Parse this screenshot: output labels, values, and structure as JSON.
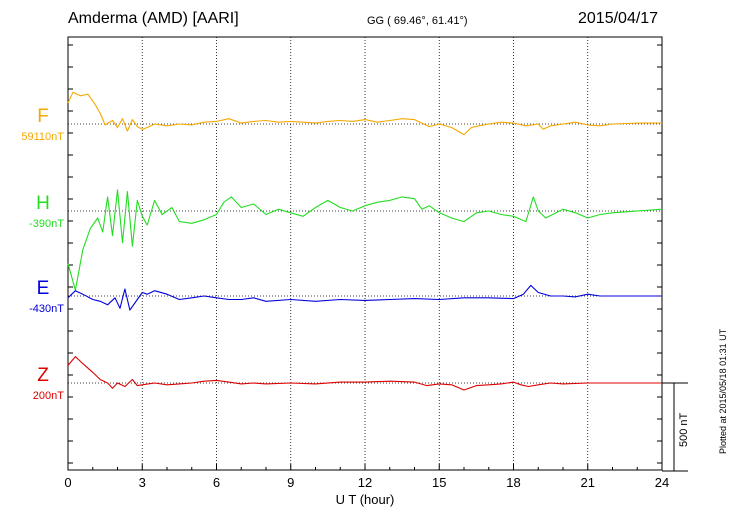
{
  "header": {
    "title": "Amderma (AMD)  [AARI]",
    "coords": "GG ( 69.46°,  61.41°)",
    "date": "2015/04/17",
    "plotted": "Plotted at 2015/05/18 01:31 UT"
  },
  "scale_bar": {
    "label": "500 nT",
    "value_nT": 500
  },
  "chart_data": {
    "type": "line",
    "title": "Amderma (AMD)  [AARI]",
    "xlabel": "U T (hour)",
    "ylabel": "",
    "xlim": [
      0,
      24
    ],
    "xticks": [
      0,
      3,
      6,
      9,
      12,
      15,
      18,
      21,
      24
    ],
    "grid": true,
    "scale_nT": 500,
    "series": [
      {
        "name": "F",
        "baseline_label": "59110nT",
        "baseline_nT": 59110,
        "color": "#f5a800",
        "points": [
          [
            0,
            120
          ],
          [
            0.2,
            180
          ],
          [
            0.5,
            160
          ],
          [
            0.8,
            170
          ],
          [
            1.1,
            110
          ],
          [
            1.3,
            60
          ],
          [
            1.5,
            -5
          ],
          [
            1.8,
            20
          ],
          [
            2.0,
            -20
          ],
          [
            2.2,
            30
          ],
          [
            2.4,
            -40
          ],
          [
            2.6,
            25
          ],
          [
            2.8,
            -15
          ],
          [
            3.0,
            -30
          ],
          [
            3.2,
            -20
          ],
          [
            3.5,
            0
          ],
          [
            4.0,
            -10
          ],
          [
            4.5,
            0
          ],
          [
            5.0,
            -5
          ],
          [
            5.5,
            10
          ],
          [
            6.0,
            15
          ],
          [
            6.5,
            30
          ],
          [
            7.0,
            5
          ],
          [
            7.5,
            15
          ],
          [
            8.0,
            20
          ],
          [
            8.5,
            10
          ],
          [
            9.0,
            15
          ],
          [
            9.5,
            10
          ],
          [
            10.0,
            5
          ],
          [
            10.5,
            15
          ],
          [
            11.0,
            20
          ],
          [
            11.5,
            15
          ],
          [
            12.0,
            25
          ],
          [
            12.5,
            10
          ],
          [
            13.0,
            20
          ],
          [
            13.5,
            30
          ],
          [
            14.0,
            25
          ],
          [
            14.3,
            5
          ],
          [
            14.6,
            -15
          ],
          [
            15.0,
            0
          ],
          [
            15.5,
            -20
          ],
          [
            16.0,
            -60
          ],
          [
            16.3,
            -20
          ],
          [
            16.6,
            -10
          ],
          [
            17.0,
            0
          ],
          [
            17.5,
            10
          ],
          [
            18.0,
            5
          ],
          [
            18.5,
            -10
          ],
          [
            19.0,
            0
          ],
          [
            19.2,
            -30
          ],
          [
            19.5,
            -10
          ],
          [
            20.0,
            0
          ],
          [
            20.5,
            10
          ],
          [
            21.0,
            -5
          ],
          [
            21.5,
            -10
          ],
          [
            22.0,
            0
          ],
          [
            23.0,
            5
          ],
          [
            24.0,
            5
          ]
        ]
      },
      {
        "name": "H",
        "baseline_label": "-390nT",
        "baseline_nT": -390,
        "color": "#22dd22",
        "points": [
          [
            0,
            -300
          ],
          [
            0.3,
            -450
          ],
          [
            0.6,
            -220
          ],
          [
            0.9,
            -100
          ],
          [
            1.2,
            -40
          ],
          [
            1.4,
            -120
          ],
          [
            1.6,
            80
          ],
          [
            1.8,
            -140
          ],
          [
            2.0,
            120
          ],
          [
            2.2,
            -180
          ],
          [
            2.4,
            110
          ],
          [
            2.6,
            -200
          ],
          [
            2.8,
            60
          ],
          [
            3.0,
            -30
          ],
          [
            3.2,
            -80
          ],
          [
            3.5,
            60
          ],
          [
            3.8,
            -20
          ],
          [
            4.2,
            20
          ],
          [
            4.5,
            -60
          ],
          [
            5.0,
            -70
          ],
          [
            5.5,
            -50
          ],
          [
            6.0,
            -20
          ],
          [
            6.3,
            50
          ],
          [
            6.6,
            80
          ],
          [
            7.0,
            20
          ],
          [
            7.5,
            40
          ],
          [
            8.0,
            -20
          ],
          [
            8.5,
            10
          ],
          [
            9.0,
            -10
          ],
          [
            9.5,
            -30
          ],
          [
            10.0,
            20
          ],
          [
            10.5,
            60
          ],
          [
            11.0,
            20
          ],
          [
            11.5,
            0
          ],
          [
            12.0,
            30
          ],
          [
            12.5,
            50
          ],
          [
            13.0,
            60
          ],
          [
            13.5,
            80
          ],
          [
            14.0,
            70
          ],
          [
            14.3,
            10
          ],
          [
            14.6,
            30
          ],
          [
            15.0,
            -10
          ],
          [
            15.5,
            -40
          ],
          [
            16.0,
            -60
          ],
          [
            16.5,
            -10
          ],
          [
            17.0,
            0
          ],
          [
            17.5,
            -20
          ],
          [
            18.0,
            -30
          ],
          [
            18.5,
            -60
          ],
          [
            18.8,
            80
          ],
          [
            19.0,
            0
          ],
          [
            19.3,
            -40
          ],
          [
            20.0,
            10
          ],
          [
            20.5,
            -10
          ],
          [
            21.0,
            -40
          ],
          [
            21.5,
            -20
          ],
          [
            22.0,
            -10
          ],
          [
            23.0,
            0
          ],
          [
            24.0,
            10
          ]
        ]
      },
      {
        "name": "E",
        "baseline_label": "-430nT",
        "baseline_nT": -430,
        "color": "#0000dd",
        "points": [
          [
            0,
            -10
          ],
          [
            0.3,
            30
          ],
          [
            0.6,
            10
          ],
          [
            1.0,
            -20
          ],
          [
            1.3,
            -30
          ],
          [
            1.6,
            -50
          ],
          [
            1.9,
            -10
          ],
          [
            2.1,
            -70
          ],
          [
            2.3,
            40
          ],
          [
            2.5,
            -80
          ],
          [
            2.8,
            -20
          ],
          [
            3.0,
            20
          ],
          [
            3.2,
            10
          ],
          [
            3.5,
            30
          ],
          [
            4.0,
            10
          ],
          [
            4.5,
            -20
          ],
          [
            5.0,
            -10
          ],
          [
            5.5,
            0
          ],
          [
            6.0,
            -10
          ],
          [
            6.5,
            -20
          ],
          [
            7.0,
            -20
          ],
          [
            7.5,
            -10
          ],
          [
            8.0,
            -30
          ],
          [
            9.0,
            -20
          ],
          [
            10.0,
            -30
          ],
          [
            11.0,
            -20
          ],
          [
            12.0,
            -25
          ],
          [
            13.0,
            -20
          ],
          [
            14.0,
            -15
          ],
          [
            15.0,
            -20
          ],
          [
            16.0,
            -10
          ],
          [
            17.0,
            -10
          ],
          [
            18.0,
            -15
          ],
          [
            18.4,
            10
          ],
          [
            18.7,
            60
          ],
          [
            19.0,
            20
          ],
          [
            19.5,
            0
          ],
          [
            20.0,
            0
          ],
          [
            20.5,
            -5
          ],
          [
            21.0,
            10
          ],
          [
            21.5,
            0
          ],
          [
            22.0,
            0
          ],
          [
            23.0,
            0
          ],
          [
            24.0,
            0
          ]
        ]
      },
      {
        "name": "Z",
        "baseline_label": "200nT",
        "baseline_nT": 200,
        "color": "#dd0000",
        "points": [
          [
            0,
            100
          ],
          [
            0.3,
            150
          ],
          [
            0.6,
            110
          ],
          [
            1.0,
            60
          ],
          [
            1.3,
            20
          ],
          [
            1.6,
            0
          ],
          [
            1.8,
            -30
          ],
          [
            2.0,
            0
          ],
          [
            2.3,
            -20
          ],
          [
            2.6,
            20
          ],
          [
            2.8,
            -15
          ],
          [
            3.0,
            -10
          ],
          [
            3.5,
            0
          ],
          [
            4.0,
            -10
          ],
          [
            4.5,
            -5
          ],
          [
            5.0,
            0
          ],
          [
            5.5,
            10
          ],
          [
            6.0,
            15
          ],
          [
            6.5,
            5
          ],
          [
            7.0,
            -5
          ],
          [
            7.5,
            0
          ],
          [
            8.0,
            -5
          ],
          [
            9.0,
            0
          ],
          [
            10.0,
            -5
          ],
          [
            11.0,
            5
          ],
          [
            12.0,
            5
          ],
          [
            13.0,
            10
          ],
          [
            14.0,
            5
          ],
          [
            14.5,
            -15
          ],
          [
            15.0,
            -5
          ],
          [
            15.5,
            -10
          ],
          [
            16.0,
            -40
          ],
          [
            16.5,
            -15
          ],
          [
            17.0,
            -10
          ],
          [
            17.5,
            -5
          ],
          [
            18.0,
            5
          ],
          [
            18.3,
            -10
          ],
          [
            18.6,
            -20
          ],
          [
            19.0,
            -10
          ],
          [
            19.5,
            0
          ],
          [
            20.0,
            -5
          ],
          [
            21.0,
            0
          ],
          [
            22.0,
            0
          ],
          [
            23.0,
            0
          ],
          [
            24.0,
            0
          ]
        ]
      }
    ]
  }
}
